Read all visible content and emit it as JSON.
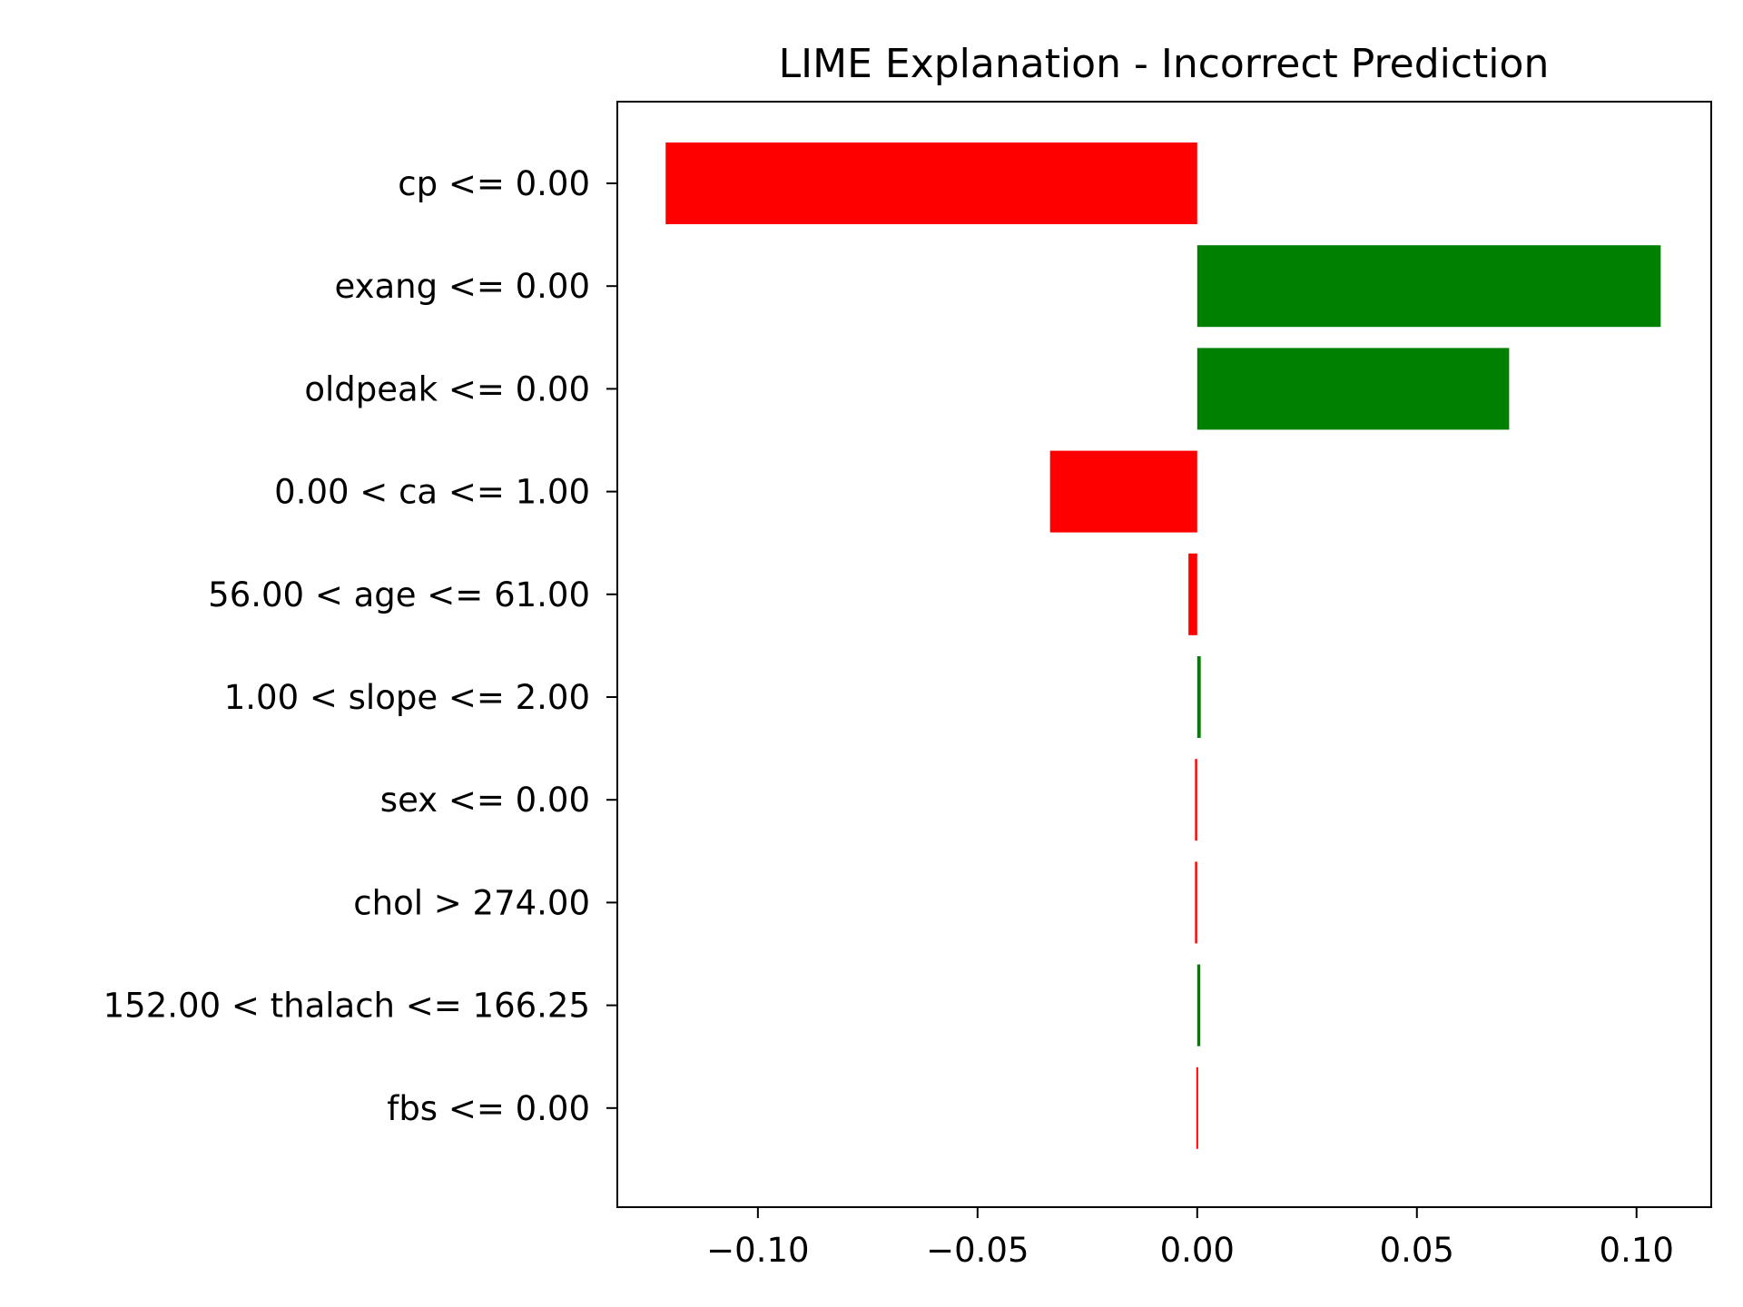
{
  "chart_data": {
    "type": "bar",
    "orientation": "horizontal",
    "title": "LIME Explanation - Incorrect Prediction",
    "xlabel": "",
    "ylabel": "",
    "xlim": [
      -0.132,
      0.117
    ],
    "xticks": [
      -0.1,
      -0.05,
      0.0,
      0.05,
      0.1
    ],
    "xtick_labels": [
      "−0.10",
      "−0.05",
      "0.00",
      "0.05",
      "0.10"
    ],
    "grid": false,
    "legend": "none",
    "positive_color": "#008000",
    "negative_color": "#ff0000",
    "categories": [
      "cp <= 0.00",
      "exang <= 0.00",
      "oldpeak <= 0.00",
      "0.00 < ca <= 1.00",
      "56.00 < age <= 61.00",
      "1.00 < slope <= 2.00",
      "sex <= 0.00",
      "chol > 274.00",
      "152.00 < thalach <= 166.25",
      "fbs <= 0.00"
    ],
    "values": [
      -0.121,
      0.1055,
      0.071,
      -0.0335,
      -0.002,
      0.0008,
      -0.0005,
      -0.0005,
      0.0007,
      -0.0002
    ]
  }
}
